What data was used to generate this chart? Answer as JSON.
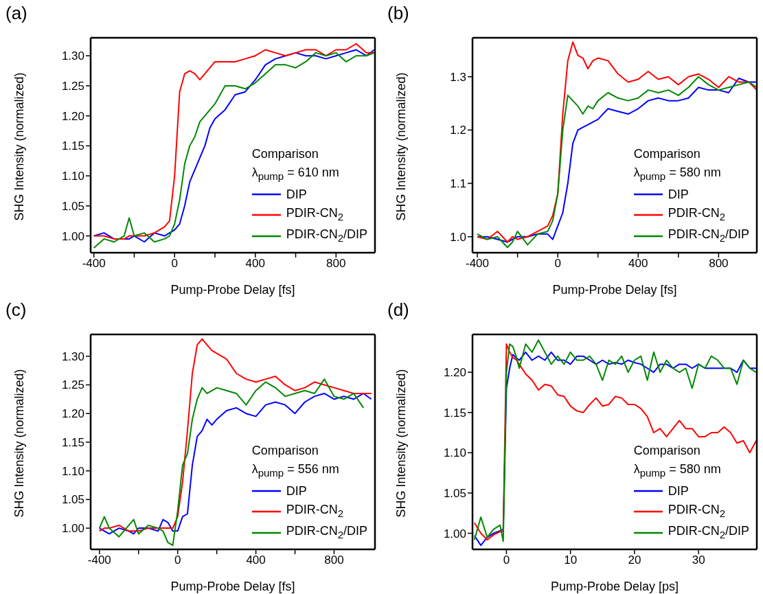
{
  "chart_data": [
    {
      "type": "line",
      "title": "(a)",
      "xlabel": "Pump-Probe Delay [fs]",
      "ylabel": "SHG Intensity (normalized)",
      "legend_title": "Comparison",
      "annotations": [
        "λ$_{pump}$ = 610 nm"
      ],
      "legend": "bottom right",
      "x": [
        -400,
        -350,
        -300,
        -250,
        -225,
        -200,
        -150,
        -100,
        -50,
        -25,
        0,
        25,
        50,
        75,
        100,
        125,
        150,
        175,
        200,
        250,
        300,
        350,
        400,
        450,
        500,
        550,
        600,
        650,
        700,
        750,
        800,
        850,
        900,
        950,
        990
      ],
      "series": [
        {
          "name": "DIP",
          "color": "#0000ff",
          "values": [
            1.0,
            1.005,
            0.995,
            0.995,
            0.995,
            1.0,
            0.99,
            1.005,
            1.0,
            1.005,
            1.01,
            1.02,
            1.05,
            1.09,
            1.11,
            1.13,
            1.15,
            1.18,
            1.195,
            1.21,
            1.235,
            1.24,
            1.26,
            1.285,
            1.295,
            1.3,
            1.305,
            1.3,
            1.3,
            1.295,
            1.3,
            1.305,
            1.31,
            1.3,
            1.31
          ]
        },
        {
          "name": "PDIR-CN$_{2}$",
          "color": "#ff0000",
          "values": [
            1.0,
            1.0,
            0.995,
            0.995,
            1.0,
            1.0,
            1.0,
            1.005,
            1.015,
            1.025,
            1.1,
            1.24,
            1.27,
            1.275,
            1.27,
            1.26,
            1.27,
            1.28,
            1.29,
            1.29,
            1.29,
            1.295,
            1.3,
            1.31,
            1.305,
            1.3,
            1.305,
            1.31,
            1.31,
            1.3,
            1.31,
            1.31,
            1.32,
            1.305,
            1.305
          ]
        },
        {
          "name": "PDIR-CN$_{2}$/DIP",
          "color": "#008800",
          "values": [
            0.98,
            0.995,
            0.99,
            1.0,
            1.03,
            1.0,
            1.005,
            0.99,
            0.995,
            1.0,
            1.02,
            1.06,
            1.12,
            1.15,
            1.165,
            1.19,
            1.2,
            1.21,
            1.22,
            1.25,
            1.25,
            1.245,
            1.255,
            1.27,
            1.285,
            1.285,
            1.28,
            1.29,
            1.305,
            1.3,
            1.305,
            1.29,
            1.3,
            1.3,
            1.305
          ]
        }
      ],
      "xlim": [
        -416,
        993
      ],
      "xticks": [
        -400,
        {
          "value": -200,
          "label": null
        },
        0,
        {
          "value": 200,
          "label": null
        },
        400,
        {
          "value": 600,
          "label": null
        },
        800
      ],
      "ylim": [
        0.972,
        1.33
      ],
      "yticks": [
        {
          "value": 1,
          "label": "1.00"
        },
        {
          "value": 1.05,
          "label": "1.05"
        },
        {
          "value": 1.1,
          "label": "1.10"
        },
        {
          "value": 1.15,
          "label": "1.15"
        },
        {
          "value": 1.2,
          "label": "1.20"
        },
        {
          "value": 1.25,
          "label": "1.25"
        },
        {
          "value": 1.3,
          "label": "1.30"
        }
      ]
    },
    {
      "type": "line",
      "title": "(b)",
      "xlabel": "Pump-Probe Delay [fs]",
      "ylabel": "SHG Intensity (normalized)",
      "legend_title": "Comparison",
      "annotations": [
        "λ$_{pump}$ = 580 nm"
      ],
      "legend": "bottom right",
      "x": [
        -400,
        -350,
        -300,
        -250,
        -225,
        -200,
        -150,
        -100,
        -50,
        -25,
        0,
        25,
        50,
        75,
        100,
        125,
        150,
        175,
        200,
        250,
        300,
        350,
        400,
        450,
        500,
        550,
        600,
        650,
        700,
        750,
        800,
        850,
        900,
        950,
        990
      ],
      "series": [
        {
          "name": "DIP",
          "color": "#0000ff",
          "values": [
            1.0,
            1.0,
            0.995,
            0.99,
            0.995,
            1.0,
            1.0,
            1.005,
            1.005,
            0.995,
            1.02,
            1.045,
            1.1,
            1.175,
            1.2,
            1.205,
            1.21,
            1.215,
            1.22,
            1.24,
            1.235,
            1.23,
            1.24,
            1.255,
            1.26,
            1.255,
            1.255,
            1.26,
            1.28,
            1.275,
            1.275,
            1.27,
            1.297,
            1.29,
            1.29
          ]
        },
        {
          "name": "PDIR-CN$_{2}$",
          "color": "#ff0000",
          "values": [
            1.0,
            0.995,
            1.01,
            0.99,
            1.0,
            0.995,
            1.0,
            1.01,
            1.02,
            1.04,
            1.08,
            1.23,
            1.33,
            1.365,
            1.34,
            1.335,
            1.315,
            1.33,
            1.335,
            1.33,
            1.305,
            1.29,
            1.295,
            1.31,
            1.295,
            1.3,
            1.285,
            1.3,
            1.305,
            1.295,
            1.28,
            1.3,
            1.29,
            1.29,
            1.275
          ]
        },
        {
          "name": "PDIR-CN$_{2}$/DIP",
          "color": "#008800",
          "values": [
            1.005,
            0.995,
            1.0,
            0.98,
            0.99,
            1.01,
            0.985,
            1.005,
            1.01,
            1.03,
            1.08,
            1.2,
            1.265,
            1.255,
            1.245,
            1.23,
            1.245,
            1.24,
            1.255,
            1.27,
            1.26,
            1.255,
            1.26,
            1.275,
            1.27,
            1.275,
            1.265,
            1.28,
            1.3,
            1.285,
            1.275,
            1.28,
            1.285,
            1.29,
            1.28
          ]
        }
      ],
      "xlim": [
        -424,
        990
      ],
      "xticks": [
        -400,
        {
          "value": -200,
          "label": null
        },
        0,
        {
          "value": 200,
          "label": null
        },
        400,
        {
          "value": 600,
          "label": null
        },
        800
      ],
      "ylim": [
        0.97,
        1.373
      ],
      "yticks": [
        {
          "value": 1,
          "label": "1.0"
        },
        {
          "value": 1.1,
          "label": "1.1"
        },
        {
          "value": 1.2,
          "label": "1.2"
        },
        {
          "value": 1.3,
          "label": "1.3"
        }
      ]
    },
    {
      "type": "line",
      "title": "(c)",
      "xlabel": "Pump-Probe Delay [fs]",
      "ylabel": "SHG Intensity (normalized)",
      "legend_title": "Comparison",
      "annotations": [
        "λ$_{pump}$ = 556 nm"
      ],
      "legend": "bottom right",
      "x": [
        -400,
        -375,
        -350,
        -300,
        -250,
        -225,
        -200,
        -150,
        -100,
        -75,
        -50,
        -25,
        0,
        25,
        50,
        75,
        100,
        125,
        150,
        175,
        200,
        250,
        300,
        350,
        400,
        450,
        500,
        550,
        600,
        650,
        700,
        750,
        800,
        850,
        900,
        950,
        990
      ],
      "series": [
        {
          "name": "DIP",
          "color": "#0000ff",
          "values": [
            1.0,
            0.995,
            0.99,
            1.0,
            0.995,
            0.99,
            1.0,
            1.0,
            0.995,
            1.015,
            1.01,
            0.995,
            0.995,
            1.02,
            1.025,
            1.11,
            1.16,
            1.17,
            1.19,
            1.18,
            1.19,
            1.205,
            1.21,
            1.2,
            1.195,
            1.215,
            1.22,
            1.215,
            1.2,
            1.22,
            1.23,
            1.235,
            1.225,
            1.23,
            1.225,
            1.235,
            1.225
          ]
        },
        {
          "name": "PDIR-CN$_{2}$",
          "color": "#ff0000",
          "values": [
            0.995,
            1.0,
            1.0,
            1.005,
            0.995,
            0.995,
            0.995,
            1.0,
            1.0,
            1.0,
            1.0,
            1.0,
            1.02,
            1.08,
            1.17,
            1.27,
            1.32,
            1.33,
            1.32,
            1.31,
            1.305,
            1.295,
            1.27,
            1.26,
            1.255,
            1.26,
            1.265,
            1.25,
            1.24,
            1.245,
            1.255,
            1.25,
            1.245,
            1.24,
            1.235,
            1.235,
            1.235
          ]
        },
        {
          "name": "PDIR-CN$_{2}$/DIP",
          "color": "#008800",
          "values": [
            1.0,
            1.02,
            1.0,
            0.985,
            1.005,
            1.015,
            0.99,
            1.005,
            1.0,
            0.995,
            0.975,
            0.97,
            1.03,
            1.11,
            1.13,
            1.19,
            1.225,
            1.245,
            1.235,
            1.24,
            1.245,
            1.24,
            1.235,
            1.215,
            1.24,
            1.255,
            1.245,
            1.23,
            1.235,
            1.24,
            1.235,
            1.26,
            1.23,
            1.225,
            1.235,
            1.21,
            null
          ]
        }
      ],
      "xlim": [
        -445,
        1009
      ],
      "xticks": [
        -400,
        {
          "value": -200,
          "label": null
        },
        0,
        {
          "value": 200,
          "label": null
        },
        400,
        {
          "value": 600,
          "label": null
        },
        800
      ],
      "ylim": [
        0.963,
        1.338
      ],
      "yticks": [
        {
          "value": 1,
          "label": "1.00"
        },
        {
          "value": 1.05,
          "label": "1.05"
        },
        {
          "value": 1.1,
          "label": "1.10"
        },
        {
          "value": 1.15,
          "label": "1.15"
        },
        {
          "value": 1.2,
          "label": "1.20"
        },
        {
          "value": 1.25,
          "label": "1.25"
        },
        {
          "value": 1.3,
          "label": "1.30"
        }
      ]
    },
    {
      "type": "line",
      "title": "(d)",
      "xlabel": "Pump-Probe Delay [ps]",
      "ylabel": "SHG Intensity (normalized)",
      "legend_title": "Comparison",
      "annotations": [
        "λ$_{pump}$ = 580 nm"
      ],
      "legend": "bottom right",
      "x": [
        -5,
        -4,
        -3,
        -2,
        -1,
        -0.5,
        0,
        0.5,
        1,
        1.5,
        2,
        3,
        4,
        5,
        6,
        7,
        8,
        9,
        10,
        11,
        12,
        13,
        14,
        15,
        16,
        17,
        18,
        19,
        20,
        21,
        22,
        23,
        24,
        25,
        26,
        27,
        28,
        29,
        30,
        31,
        32,
        33,
        34,
        35,
        36,
        37,
        38,
        39
      ],
      "series": [
        {
          "name": "DIP",
          "color": "#0000ff",
          "values": [
            0.997,
            0.985,
            0.995,
            1.0,
            1.003,
            1.005,
            1.18,
            1.205,
            1.222,
            1.218,
            1.215,
            1.225,
            1.215,
            1.22,
            1.215,
            1.225,
            1.215,
            1.215,
            1.21,
            1.22,
            1.22,
            1.215,
            1.21,
            1.215,
            1.21,
            1.212,
            1.21,
            1.215,
            1.212,
            1.21,
            1.205,
            1.2,
            1.21,
            1.21,
            1.205,
            1.21,
            1.21,
            1.205,
            1.21,
            1.205,
            1.205,
            1.205,
            1.205,
            1.205,
            1.2,
            1.215,
            1.205,
            1.205
          ]
        },
        {
          "name": "PDIR-CN$_{2}$",
          "color": "#ff0000",
          "values": [
            1.013,
            1.0,
            0.992,
            0.998,
            1.002,
            1.002,
            1.235,
            1.225,
            1.218,
            1.216,
            1.21,
            1.198,
            1.19,
            1.178,
            1.185,
            1.183,
            1.172,
            1.17,
            1.158,
            1.152,
            1.15,
            1.16,
            1.168,
            1.158,
            1.16,
            1.17,
            1.168,
            1.16,
            1.16,
            1.155,
            1.145,
            1.125,
            1.13,
            1.12,
            1.13,
            1.14,
            1.13,
            1.13,
            1.12,
            1.12,
            1.125,
            1.125,
            1.132,
            1.125,
            1.112,
            1.115,
            1.1,
            1.115
          ]
        },
        {
          "name": "PDIR-CN$_{2}$/DIP",
          "color": "#008800",
          "values": [
            0.992,
            1.02,
            0.995,
            1.005,
            1.01,
            0.99,
            1.2,
            1.235,
            1.232,
            1.22,
            1.205,
            1.235,
            1.225,
            1.24,
            1.225,
            1.21,
            1.22,
            1.21,
            1.225,
            1.215,
            1.215,
            1.22,
            1.21,
            1.19,
            1.215,
            1.21,
            1.22,
            1.2,
            1.215,
            1.22,
            1.19,
            1.225,
            1.2,
            1.215,
            1.205,
            1.2,
            1.205,
            1.18,
            1.21,
            1.205,
            1.22,
            1.215,
            1.205,
            1.205,
            1.185,
            1.215,
            1.205,
            1.2
          ]
        }
      ],
      "xlim": [
        -5.3,
        39.1
      ],
      "xticks": [
        0,
        10,
        20,
        30
      ],
      "ylim": [
        0.98,
        1.247
      ],
      "yticks": [
        {
          "value": 1,
          "label": "1.00"
        },
        {
          "value": 1.05,
          "label": "1.05"
        },
        {
          "value": 1.1,
          "label": "1.10"
        },
        {
          "value": 1.15,
          "label": "1.15"
        },
        {
          "value": 1.2,
          "label": "1.20"
        }
      ]
    }
  ]
}
